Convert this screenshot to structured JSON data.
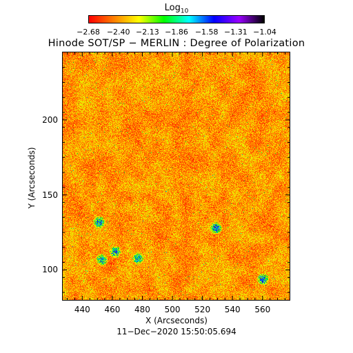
{
  "colorbar": {
    "label": "Log",
    "label_subscript": "10",
    "ticks": [
      "−2.68",
      "−2.40",
      "−2.13",
      "−1.86",
      "−1.58",
      "−1.31",
      "−1.04"
    ],
    "tick_values": [
      -2.68,
      -2.4,
      -2.13,
      -1.86,
      -1.58,
      -1.31,
      -1.04
    ],
    "range": [
      -2.68,
      -1.04
    ],
    "colors": [
      "#ff0000",
      "#ff8000",
      "#ffff00",
      "#00ff00",
      "#00ffff",
      "#0000ff",
      "#9900ff",
      "#000000"
    ]
  },
  "title": "Hinode SOT/SP − MERLIN : Degree of Polarization",
  "timestamp": "11−Dec−2020 15:50:05.694",
  "chart_data": {
    "type": "heatmap",
    "title": "Hinode SOT/SP − MERLIN : Degree of Polarization",
    "xlabel": "X (Arcseconds)",
    "ylabel": "Y (Arcseconds)",
    "xlim": [
      427,
      578
    ],
    "ylim": [
      80,
      245
    ],
    "x_ticks": [
      440,
      460,
      480,
      500,
      520,
      540,
      560
    ],
    "y_ticks": [
      100,
      150,
      200
    ],
    "x_tick_labels": [
      "440",
      "460",
      "480",
      "500",
      "520",
      "540",
      "560"
    ],
    "y_tick_labels": [
      "100",
      "150",
      "200"
    ],
    "value_scale": "log10",
    "value_range": [
      -2.68,
      -1.04
    ],
    "strong_polarization_patches": [
      {
        "x": 453,
        "y": 107
      },
      {
        "x": 462,
        "y": 112
      },
      {
        "x": 477,
        "y": 108
      },
      {
        "x": 560,
        "y": 94
      },
      {
        "x": 451,
        "y": 132
      },
      {
        "x": 529,
        "y": 128
      }
    ]
  }
}
